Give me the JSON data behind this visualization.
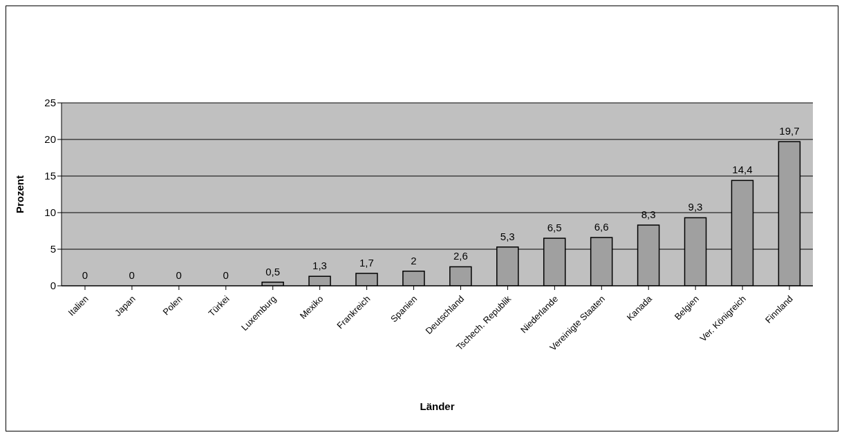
{
  "chart_data": {
    "type": "bar",
    "xlabel": "Länder",
    "ylabel": "Prozent",
    "categories": [
      "Italien",
      "Japan",
      "Polen",
      "Türkei",
      "Luxemburg",
      "Mexiko",
      "Frankreich",
      "Spanien",
      "Deutschland",
      "Tschech. Republik",
      "Niederlande",
      "Vereinigte Staaten",
      "Kanada",
      "Belgien",
      "Ver. Königreich",
      "Finnland"
    ],
    "values": [
      0,
      0,
      0,
      0,
      0.5,
      1.3,
      1.7,
      2,
      2.6,
      5.3,
      6.5,
      6.6,
      8.3,
      9.3,
      14.4,
      19.7
    ],
    "value_labels": [
      "0",
      "0",
      "0",
      "0",
      "0,5",
      "1,3",
      "1,7",
      "2",
      "2,6",
      "5,3",
      "6,5",
      "6,6",
      "8,3",
      "9,3",
      "14,4",
      "19,7"
    ],
    "color": "#a0a0a0",
    "ylim": [
      0,
      25
    ],
    "yticks": [
      0,
      5,
      10,
      15,
      20,
      25
    ],
    "grid": "y",
    "legend": false
  }
}
